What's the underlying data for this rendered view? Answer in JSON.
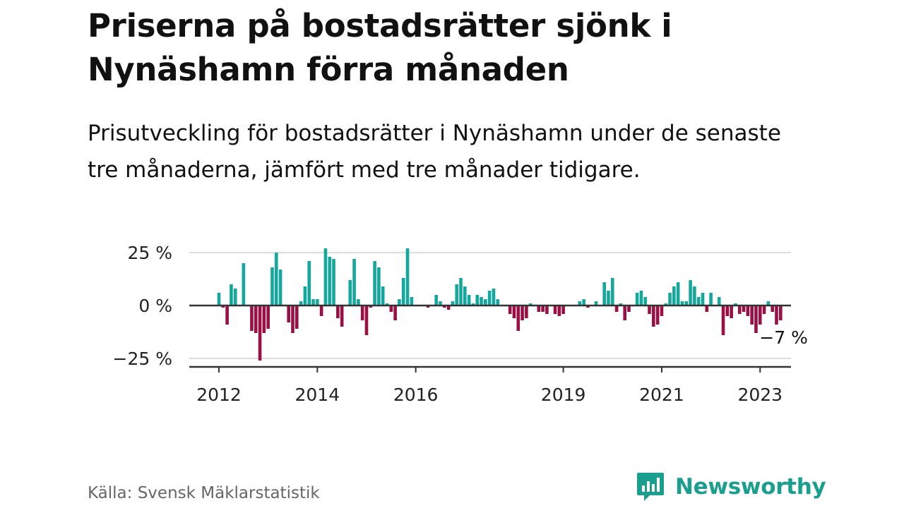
{
  "title": "Priserna på bostadsrätter sjönk i Nynäshamn förra månaden",
  "subtitle": "Prisutveckling för bostadsrätter i Nynäshamn under de senaste tre månaderna, jämfört med tre månader tidigare.",
  "source": "Källa: Svensk Mäklarstatistik",
  "brand": {
    "name": "Newsworthy",
    "icon": "bar-chart-speech-bubble-icon"
  },
  "colors": {
    "positive": "#13a89e",
    "negative": "#9c0f44",
    "brand": "#1a9e8e",
    "grid": "#dddddd",
    "axis": "#333333"
  },
  "chart_data": {
    "type": "bar",
    "title": "",
    "xlabel": "",
    "ylabel": "",
    "ylim": [
      -30,
      30
    ],
    "yticks": [
      25,
      0,
      -25
    ],
    "ytick_labels": [
      "25 %",
      "0 %",
      "−25 %"
    ],
    "xticks": [
      {
        "label": "2012",
        "date": "2012-01"
      },
      {
        "label": "2014",
        "date": "2014-01"
      },
      {
        "label": "2016",
        "date": "2016-01"
      },
      {
        "label": "2019",
        "date": "2019-01"
      },
      {
        "label": "2021",
        "date": "2021-01"
      },
      {
        "label": "2023",
        "date": "2023-01"
      }
    ],
    "last_value_label": "−7 %",
    "grid": true,
    "series": [
      {
        "start": "2012-01",
        "frequency": "monthly",
        "values": [
          6,
          -1,
          -9,
          10,
          8,
          0,
          20,
          0,
          -12,
          -13,
          -26,
          -13,
          -11,
          18,
          25,
          17,
          0,
          -8,
          -13,
          -11,
          2,
          9,
          21,
          3,
          3,
          -5,
          27,
          23,
          22,
          -6,
          -10,
          0,
          12,
          22,
          3,
          -7,
          -14,
          -1,
          21,
          18,
          9,
          1,
          -3,
          -7,
          3,
          13,
          27,
          4,
          0,
          0,
          0,
          -1,
          0,
          5,
          2,
          -1,
          -2,
          2,
          10,
          13,
          9,
          5,
          1,
          5,
          4,
          3,
          7,
          8,
          3,
          0,
          0,
          -4,
          -6,
          -12,
          -7,
          -6,
          1,
          0,
          -3,
          -3,
          -4,
          0,
          -4,
          -5,
          -4,
          0,
          0,
          0,
          2,
          3,
          -1,
          0,
          2,
          0,
          11,
          7,
          13,
          -3,
          1,
          -7,
          -3,
          0,
          6,
          7,
          4,
          -4,
          -10,
          -9,
          -5,
          1,
          6,
          9,
          11,
          2,
          2,
          12,
          9,
          4,
          6,
          -3,
          6,
          0,
          4,
          -14,
          -5,
          -6,
          1,
          -4,
          -3,
          -5,
          -9,
          -13,
          -9,
          -4,
          2,
          -3,
          -9,
          -7
        ]
      }
    ]
  }
}
